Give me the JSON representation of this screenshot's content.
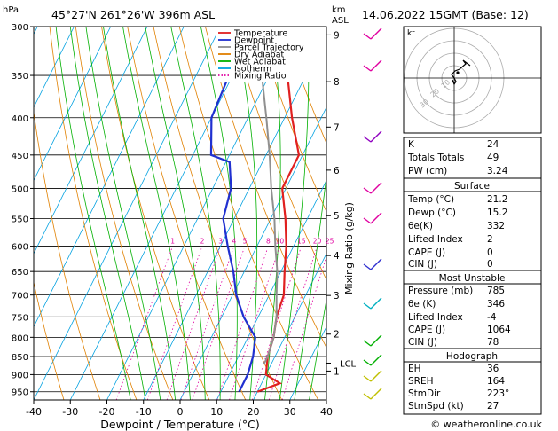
{
  "header": {
    "location": "45°27'N  261°26'W  396m  ASL",
    "datetime": "14.06.2022  15GMT  (Base: 12)",
    "hpa_unit": "hPa",
    "km_unit": "km",
    "asl_unit": "ASL"
  },
  "axes": {
    "xlabel": "Dewpoint / Temperature (°C)",
    "right_label": "Mixing Ratio (g/kg)",
    "lcl_label": "LCL",
    "credit": "© weatheronline.co.uk"
  },
  "legend": [
    {
      "label": "Temperature",
      "color": "#e02020",
      "style": "solid"
    },
    {
      "label": "Dewpoint",
      "color": "#2030d0",
      "style": "solid"
    },
    {
      "label": "Parcel Trajectory",
      "color": "#909090",
      "style": "solid"
    },
    {
      "label": "Dry Adiabat",
      "color": "#e08000",
      "style": "solid"
    },
    {
      "label": "Wet Adiabat",
      "color": "#00b000",
      "style": "solid"
    },
    {
      "label": "Isotherm",
      "color": "#00a0e0",
      "style": "solid"
    },
    {
      "label": "Mixing Ratio",
      "color": "#e000a0",
      "style": "dotted"
    }
  ],
  "chart_data": {
    "type": "line",
    "title": "",
    "xlabel": "Dewpoint / Temperature (°C)",
    "ylabel": "hPa",
    "xlim": [
      -40,
      40
    ],
    "ylim": [
      300,
      975
    ],
    "log_y": true,
    "skew": true,
    "x_ticks": [
      "-40",
      "-30",
      "-20",
      "-10",
      "0",
      "10",
      "20",
      "30",
      "40"
    ],
    "pressure_ticks": [
      "300",
      "350",
      "400",
      "450",
      "500",
      "550",
      "600",
      "650",
      "700",
      "750",
      "800",
      "850",
      "900",
      "950"
    ],
    "km_ticks": [
      {
        "label": "9",
        "p": 308
      },
      {
        "label": "8",
        "p": 357
      },
      {
        "label": "7",
        "p": 412
      },
      {
        "label": "6",
        "p": 472
      },
      {
        "label": "5",
        "p": 545
      },
      {
        "label": "4",
        "p": 618
      },
      {
        "label": "3",
        "p": 701
      },
      {
        "label": "2",
        "p": 792
      },
      {
        "label": "1",
        "p": 890
      }
    ],
    "lcl_pressure": 868,
    "mixing_ratio_labels": [
      "1",
      "2",
      "3",
      "4",
      "5",
      "8",
      "10",
      "15",
      "20",
      "25"
    ],
    "series": [
      {
        "name": "Temperature",
        "color": "#e02020",
        "points": [
          [
            300,
            -22
          ],
          [
            350,
            -15
          ],
          [
            400,
            -8
          ],
          [
            450,
            -1
          ],
          [
            500,
            -1
          ],
          [
            550,
            4
          ],
          [
            600,
            8
          ],
          [
            650,
            11
          ],
          [
            700,
            14
          ],
          [
            750,
            15
          ],
          [
            800,
            17
          ],
          [
            850,
            18
          ],
          [
            900,
            20
          ],
          [
            925,
            25
          ],
          [
            950,
            20
          ]
        ]
      },
      {
        "name": "Dewpoint",
        "color": "#2030d0",
        "points": [
          [
            300,
            -37
          ],
          [
            350,
            -31
          ],
          [
            400,
            -30
          ],
          [
            450,
            -25
          ],
          [
            460,
            -19
          ],
          [
            500,
            -15
          ],
          [
            550,
            -13
          ],
          [
            600,
            -8
          ],
          [
            650,
            -3
          ],
          [
            700,
            1
          ],
          [
            750,
            6
          ],
          [
            800,
            12
          ],
          [
            850,
            14
          ],
          [
            900,
            15
          ],
          [
            950,
            15
          ]
        ]
      },
      {
        "name": "Parcel Trajectory",
        "color": "#909090",
        "points": [
          [
            300,
            -30
          ],
          [
            350,
            -22
          ],
          [
            400,
            -15
          ],
          [
            450,
            -9
          ],
          [
            500,
            -4
          ],
          [
            550,
            1
          ],
          [
            600,
            5
          ],
          [
            650,
            9
          ],
          [
            700,
            12
          ],
          [
            750,
            15
          ],
          [
            800,
            17
          ],
          [
            850,
            18
          ],
          [
            870,
            18
          ]
        ]
      }
    ]
  },
  "indices": {
    "rows": [
      {
        "k": "K",
        "v": "24"
      },
      {
        "k": "Totals Totals",
        "v": "49"
      },
      {
        "k": "PW (cm)",
        "v": "3.24"
      }
    ]
  },
  "surface": {
    "title": "Surface",
    "rows": [
      {
        "k": "Temp (°C)",
        "v": "21.2"
      },
      {
        "k": "Dewp (°C)",
        "v": "15.2"
      },
      {
        "k": "θe(K)",
        "v": "332"
      },
      {
        "k": "Lifted Index",
        "v": "2"
      },
      {
        "k": "CAPE (J)",
        "v": "0"
      },
      {
        "k": "CIN (J)",
        "v": "0"
      }
    ]
  },
  "most_unstable": {
    "title": "Most Unstable",
    "rows": [
      {
        "k": "Pressure (mb)",
        "v": "785"
      },
      {
        "k": "θe (K)",
        "v": "346"
      },
      {
        "k": "Lifted Index",
        "v": "-4"
      },
      {
        "k": "CAPE (J)",
        "v": "1064"
      },
      {
        "k": "CIN (J)",
        "v": "78"
      }
    ]
  },
  "hodograph_table": {
    "title": "Hodograph",
    "rows": [
      {
        "k": "EH",
        "v": "36"
      },
      {
        "k": "SREH",
        "v": "164"
      },
      {
        "k": "StmDir",
        "v": "223°"
      },
      {
        "k": "StmSpd (kt)",
        "v": "27"
      }
    ]
  },
  "hodograph": {
    "unit_label": "kt",
    "ring_labels": [
      "10",
      "20",
      "30"
    ]
  }
}
